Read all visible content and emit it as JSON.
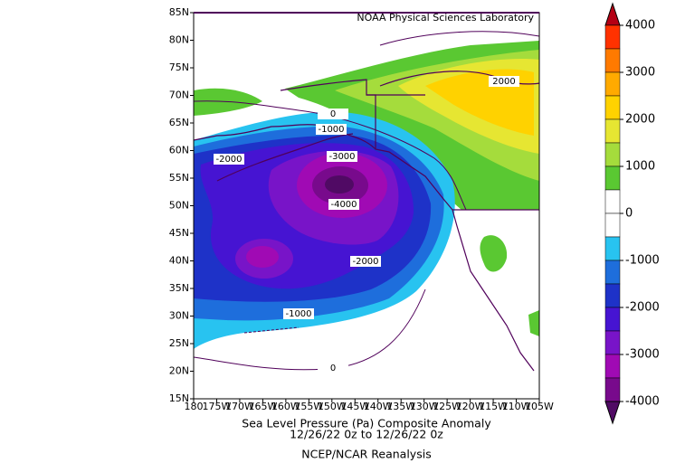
{
  "map": {
    "credit": "NOAA Physical Sciences Laboratory",
    "lat_labels": [
      "85N",
      "80N",
      "75N",
      "70N",
      "65N",
      "60N",
      "55N",
      "50N",
      "45N",
      "40N",
      "35N",
      "30N",
      "25N",
      "20N",
      "15N"
    ],
    "lon_labels": [
      "180",
      "175W",
      "170W",
      "165W",
      "160W",
      "155W",
      "150W",
      "145W",
      "140W",
      "135W",
      "130W",
      "125W",
      "120W",
      "115W",
      "110W",
      "105W"
    ],
    "contour_labels": [
      "2000",
      "-1000",
      "-3000",
      "-2000",
      "-4000",
      "-2000",
      "-1000",
      "0",
      "0"
    ],
    "caption": [
      "Sea Level Pressure (Pa)    Composite Anomaly",
      "12/26/22 0z  to 12/26/22 0z",
      "NCEP/NCAR Reanalysis"
    ]
  },
  "colorbar": {
    "range": [
      -4000,
      4000
    ],
    "ticks": [
      4000,
      3000,
      2000,
      1000,
      0,
      -1000,
      -2000,
      -3000,
      -4000
    ],
    "colors": [
      "#b40014",
      "#ff3200",
      "#ff7a00",
      "#ffaa00",
      "#ffd200",
      "#e6e632",
      "#a5dc3c",
      "#5ac832",
      "#ffffff",
      "#ffffff",
      "#28c3f0",
      "#1e6edc",
      "#1e32c8",
      "#4614d2",
      "#7814c8",
      "#a00ab4",
      "#780a8c",
      "#500a64"
    ]
  }
}
